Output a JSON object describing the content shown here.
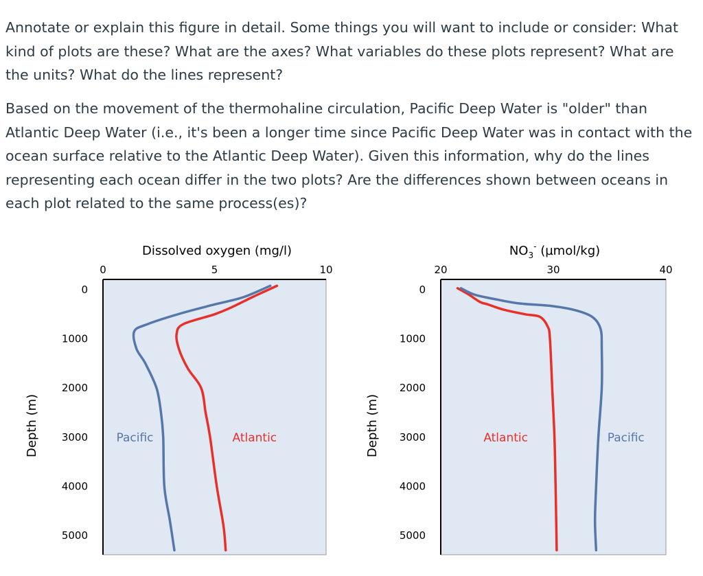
{
  "question": {
    "paragraph1": "Annotate or explain this figure in detail. Some things you will want to include or consider:  What kind of plots are these? What are the axes? What variables do these plots represent? What are the units? What do the lines represent?",
    "paragraph2": "Based on the movement of the thermohaline circulation, Pacific Deep Water is \"older\" than Atlantic Deep Water (i.e., it's been a longer time since Pacific Deep Water was in contact with the ocean surface relative to the Atlantic Deep Water). Given this information, why do the lines representing each ocean differ in the two plots? Are the differences shown between oceans in each plot related to the same process(es)?"
  },
  "colors": {
    "pacific": "#5677a8",
    "atlantic": "#e8302a",
    "plot_background": "#e0e8f4"
  },
  "chart_data": [
    {
      "type": "line",
      "title": "Dissolved oxygen (mg/l)",
      "title_main": "Dissolved oxygen (mg/l)",
      "title_sup": "",
      "ylabel": "Depth (m)",
      "xlim": [
        0,
        10
      ],
      "ylim": [
        0,
        5400
      ],
      "y_inverted": true,
      "x_axis_position": "top",
      "x_ticks": [
        "0",
        "5",
        "10"
      ],
      "x_tick_values": [
        0,
        5,
        10
      ],
      "y_ticks": [
        "0",
        "1000",
        "2000",
        "3000",
        "4000",
        "5000"
      ],
      "y_tick_values": [
        0,
        1000,
        2000,
        3000,
        4000,
        5000
      ],
      "grid": false,
      "series": [
        {
          "name": "Pacific",
          "color_key": "pacific",
          "label_at": [
            0.6,
            3000
          ],
          "points": [
            [
              7.5,
              -80
            ],
            [
              6.3,
              150
            ],
            [
              5.0,
              300
            ],
            [
              3.5,
              480
            ],
            [
              2.0,
              700
            ],
            [
              1.4,
              850
            ],
            [
              1.5,
              1200
            ],
            [
              1.9,
              1500
            ],
            [
              2.4,
              2000
            ],
            [
              2.6,
              2500
            ],
            [
              2.7,
              3000
            ],
            [
              2.75,
              4000
            ],
            [
              3.0,
              4700
            ],
            [
              3.2,
              5300
            ]
          ]
        },
        {
          "name": "Atlantic",
          "color_key": "atlantic",
          "label_at": [
            5.8,
            3000
          ],
          "points": [
            [
              7.8,
              -80
            ],
            [
              6.7,
              150
            ],
            [
              5.8,
              350
            ],
            [
              5.0,
              500
            ],
            [
              3.6,
              700
            ],
            [
              3.3,
              900
            ],
            [
              3.4,
              1200
            ],
            [
              3.8,
              1600
            ],
            [
              4.4,
              2000
            ],
            [
              4.6,
              2500
            ],
            [
              4.8,
              3000
            ],
            [
              5.1,
              4000
            ],
            [
              5.4,
              4800
            ],
            [
              5.5,
              5300
            ]
          ]
        }
      ]
    },
    {
      "type": "line",
      "title": "NO3- (µmol/kg)",
      "title_main": "NO",
      "title_sub": "3",
      "title_sup": "-",
      "title_rest": " (µmol/kg)",
      "ylabel": "Depth (m)",
      "xlim": [
        20,
        40
      ],
      "ylim": [
        0,
        5400
      ],
      "y_inverted": true,
      "x_axis_position": "top",
      "x_ticks": [
        "20",
        "30",
        "40"
      ],
      "x_tick_values": [
        20,
        30,
        40
      ],
      "y_ticks": [
        "0",
        "1000",
        "2000",
        "3000",
        "4000",
        "5000"
      ],
      "y_tick_values": [
        0,
        1000,
        2000,
        3000,
        4000,
        5000
      ],
      "grid": false,
      "series": [
        {
          "name": "Atlantic",
          "color_key": "atlantic",
          "label_at": [
            23.8,
            3000
          ],
          "points": [
            [
              21.5,
              -30
            ],
            [
              22.5,
              100
            ],
            [
              23.5,
              250
            ],
            [
              24.2,
              300
            ],
            [
              25.5,
              400
            ],
            [
              27.5,
              500
            ],
            [
              28.8,
              550
            ],
            [
              29.5,
              750
            ],
            [
              29.7,
              1000
            ],
            [
              29.9,
              2000
            ],
            [
              30.1,
              3000
            ],
            [
              30.2,
              4000
            ],
            [
              30.3,
              5300
            ]
          ]
        },
        {
          "name": "Pacific",
          "color_key": "pacific",
          "label_at": [
            34.8,
            3000
          ],
          "points": [
            [
              21.8,
              -30
            ],
            [
              23.0,
              100
            ],
            [
              25.0,
              200
            ],
            [
              27.0,
              280
            ],
            [
              29.8,
              330
            ],
            [
              32.0,
              420
            ],
            [
              33.5,
              560
            ],
            [
              34.2,
              800
            ],
            [
              34.3,
              1200
            ],
            [
              34.3,
              2000
            ],
            [
              34.0,
              3000
            ],
            [
              33.8,
              4000
            ],
            [
              33.7,
              4700
            ],
            [
              33.8,
              5300
            ]
          ]
        }
      ]
    }
  ]
}
